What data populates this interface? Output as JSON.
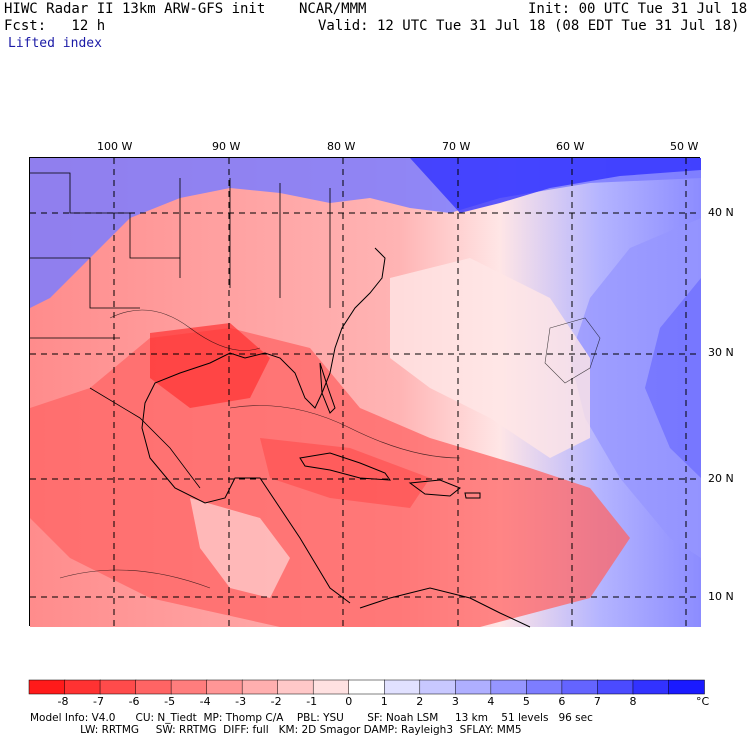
{
  "header": {
    "title": "HIWC Radar II 13km ARW-GFS init    NCAR/MMM",
    "init": "Init: 00 UTC Tue 31 Jul 18",
    "fcst": "Fcst:   12 h",
    "valid": "Valid: 12 UTC Tue 31 Jul 18 (08 EDT Tue 31 Jul 18)",
    "field": "Lifted index"
  },
  "axes": {
    "lon_labels": [
      "100 W",
      "90 W",
      "80 W",
      "70 W",
      "60 W",
      "50 W"
    ],
    "lat_labels": [
      "40 N",
      "30 N",
      "20 N",
      "10 N"
    ]
  },
  "colorbar": {
    "unit": "°C",
    "ticks": [
      "-8",
      "-7",
      "-6",
      "-5",
      "-4",
      "-3",
      "-2",
      "-1",
      "0",
      "1",
      "2",
      "3",
      "4",
      "5",
      "6",
      "7",
      "8"
    ],
    "colors": [
      "#ff1a1a",
      "#ff3232",
      "#ff4b4b",
      "#ff6464",
      "#ff7d7d",
      "#ff9696",
      "#ffafaf",
      "#ffc8c8",
      "#ffe1e1",
      "#ffffff",
      "#e1e1ff",
      "#c8c8ff",
      "#afafff",
      "#9696ff",
      "#7d7dff",
      "#6464ff",
      "#4b4bff",
      "#3232ff",
      "#1a1aff"
    ]
  },
  "footer": {
    "line1": "Model Info: V4.0      CU: N_Tiedt  MP: Thomp C/A    PBL: YSU       SF: Noah LSM     13 km    51 levels   96 sec",
    "line2": "               LW: RRTMG     SW: RRTMG  DIFF: full   KM: 2D Smagor DAMP: Rayleigh3  SFLAY: MM5"
  },
  "colors": {
    "warm_accent": "#ff4b4b",
    "cool_accent": "#3232ff",
    "header_blue": "#1a1aa6"
  }
}
